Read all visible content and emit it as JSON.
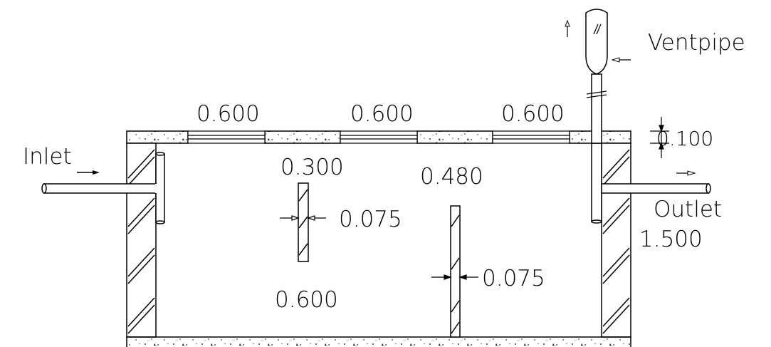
{
  "labels": {
    "inlet": "Inlet",
    "outlet": "Outlet",
    "ventpipe": "Ventpipe"
  },
  "dimensions": {
    "cover_opening_1": "0.600",
    "cover_opening_2": "0.600",
    "cover_opening_3": "0.600",
    "cover_thickness": "0.100",
    "baffle_1_gap": "0.300",
    "baffle_1_thickness": "0.075",
    "baffle_2_gap": "0.480",
    "baffle_2_thickness": "0.075",
    "chamber_width": "0.600",
    "tank_depth": "1.500"
  }
}
